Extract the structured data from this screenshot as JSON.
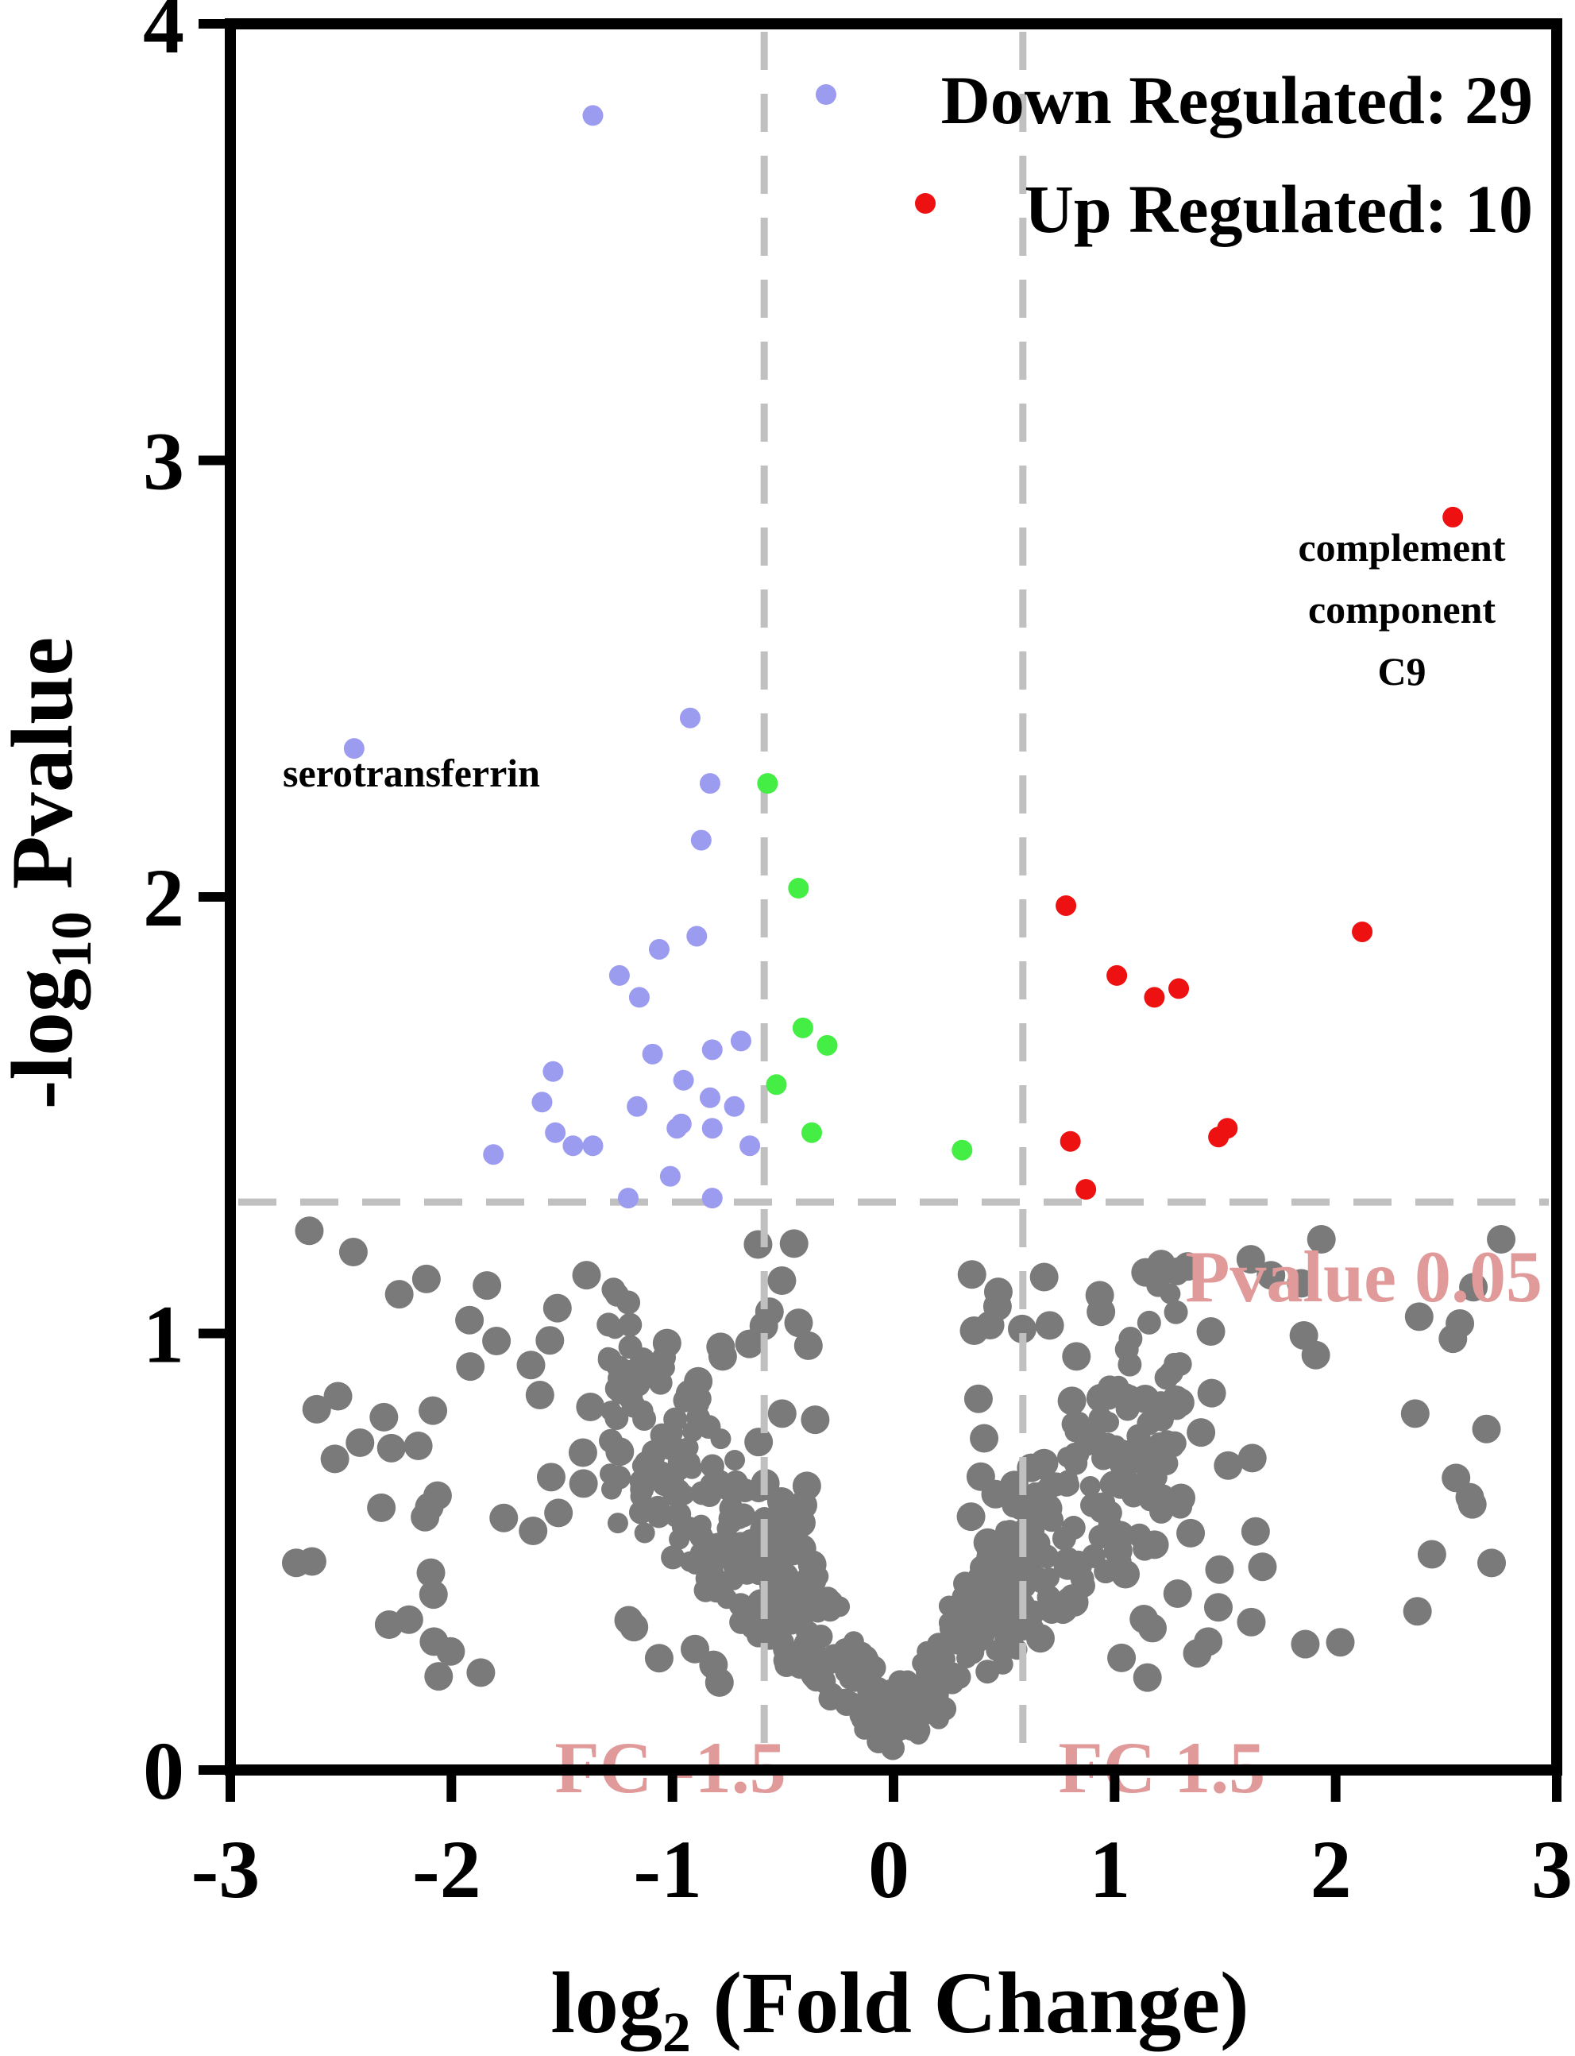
{
  "chart_data": {
    "type": "scatter",
    "xlabel_base": "log",
    "xlabel_sub": "2",
    "xlabel_rest": " (Fold Change)",
    "ylabel_pre": "-log",
    "ylabel_sub": "10",
    "ylabel_rest": " Pvalue",
    "xlim": [
      -3,
      3
    ],
    "ylim": [
      0,
      4
    ],
    "x_ticks": [
      "-3",
      "-2",
      "-1",
      "0",
      "1",
      "2",
      "3"
    ],
    "y_ticks": [
      "0",
      "1",
      "2",
      "3",
      "4"
    ],
    "grid": false,
    "legend_position": "top-right",
    "legend": [
      {
        "label": "Down Regulated: 29",
        "color": "#9b9bf0"
      },
      {
        "label": "Up Regulated: 10",
        "color": "#ee1111"
      }
    ],
    "reference_lines": {
      "fc_low": -0.585,
      "fc_high": 0.585,
      "p_threshold": 1.301,
      "color": "#c0c0c0"
    },
    "reference_labels": {
      "fc_low": "FC -1.5",
      "fc_high": "FC 1.5",
      "pvalue": "Pvalue 0.05"
    },
    "annotations": [
      {
        "lines": [
          "serotransferrin"
        ],
        "x": -2.44,
        "y": 2.34
      },
      {
        "lines": [
          "complement",
          "component",
          "C9"
        ],
        "x": 2.53,
        "y": 2.87
      }
    ],
    "series": [
      {
        "name": "Down Regulated",
        "color": "#9b9bf0",
        "points": [
          [
            -1.36,
            3.79
          ],
          [
            -2.44,
            2.34
          ],
          [
            -0.92,
            2.41
          ],
          [
            -0.83,
            2.26
          ],
          [
            -0.87,
            2.13
          ],
          [
            -0.89,
            1.91
          ],
          [
            -1.06,
            1.88
          ],
          [
            -1.24,
            1.82
          ],
          [
            -1.15,
            1.77
          ],
          [
            -0.69,
            1.67
          ],
          [
            -0.82,
            1.65
          ],
          [
            -1.09,
            1.64
          ],
          [
            -0.95,
            1.58
          ],
          [
            -1.54,
            1.6
          ],
          [
            -1.59,
            1.53
          ],
          [
            -1.16,
            1.52
          ],
          [
            -0.83,
            1.54
          ],
          [
            -0.72,
            1.52
          ],
          [
            -1.53,
            1.46
          ],
          [
            -0.98,
            1.47
          ],
          [
            -0.82,
            1.47
          ],
          [
            -1.45,
            1.43
          ],
          [
            -1.36,
            1.43
          ],
          [
            -0.65,
            1.43
          ],
          [
            -1.81,
            1.41
          ],
          [
            -1.01,
            1.36
          ],
          [
            -1.2,
            1.31
          ],
          [
            -0.82,
            1.31
          ],
          [
            -0.96,
            1.48
          ]
        ]
      },
      {
        "name": "Up Regulated",
        "color": "#ee1111",
        "points": [
          [
            2.53,
            2.87
          ],
          [
            2.12,
            1.92
          ],
          [
            0.78,
            1.98
          ],
          [
            1.01,
            1.82
          ],
          [
            1.29,
            1.79
          ],
          [
            1.18,
            1.77
          ],
          [
            0.8,
            1.44
          ],
          [
            1.47,
            1.45
          ],
          [
            1.51,
            1.47
          ],
          [
            0.87,
            1.33
          ]
        ]
      },
      {
        "color": "#44ee44",
        "points": [
          [
            -0.57,
            2.26
          ],
          [
            -0.43,
            2.02
          ],
          [
            -0.41,
            1.7
          ],
          [
            -0.3,
            1.66
          ],
          [
            -0.53,
            1.57
          ],
          [
            -0.37,
            1.46
          ],
          [
            0.31,
            1.42
          ]
        ]
      }
    ]
  }
}
